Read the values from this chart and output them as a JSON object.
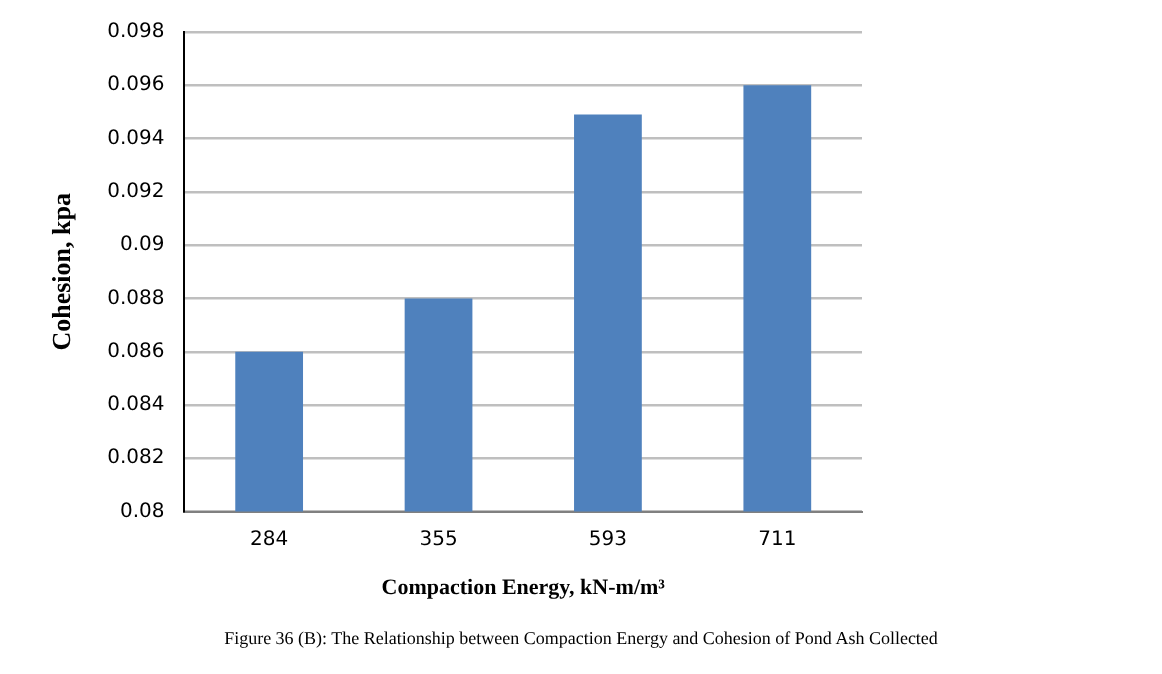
{
  "chart_data": {
    "type": "bar",
    "categories": [
      "284",
      "355",
      "593",
      "711"
    ],
    "series": [
      {
        "color": "#4f81bd",
        "values": [
          0.086,
          0.088,
          0.0949,
          0.096
        ]
      }
    ],
    "ylim": [
      0.08,
      0.098
    ],
    "yticks": [
      0.08,
      0.082,
      0.084,
      0.086,
      0.088,
      0.09,
      0.092,
      0.094,
      0.096,
      0.098
    ],
    "xlabel": "Compaction Energy, kN-m/m³",
    "ylabel": "Cohesion, kpa",
    "grid": "y",
    "legend": false,
    "annotations": [
      "Figure 36 (B): The Relationship between Compaction Energy and Cohesion of Pond Ash Collected"
    ]
  }
}
